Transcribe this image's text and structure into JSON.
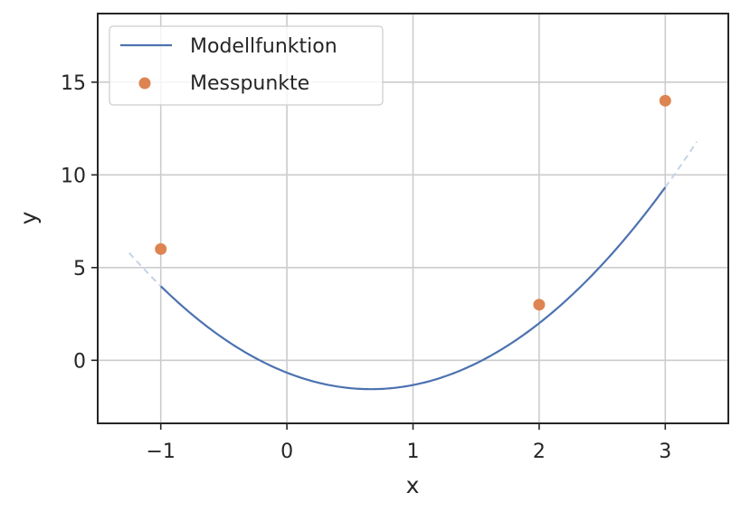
{
  "chart_data": {
    "type": "line",
    "xlabel": "x",
    "ylabel": "y",
    "xlim": [
      -1.5,
      3.5
    ],
    "ylim": [
      -3.4,
      18.7
    ],
    "xticks": [
      -1,
      0,
      1,
      2,
      3
    ],
    "xtick_labels": [
      "−1",
      "0",
      "1",
      "2",
      "3"
    ],
    "yticks": [
      0,
      5,
      10,
      15
    ],
    "ytick_labels": [
      "0",
      "5",
      "10",
      "15"
    ],
    "grid": true,
    "legend_position": "top-left",
    "series": [
      {
        "name": "Modellfunktion",
        "kind": "line",
        "color": "#4c72b0",
        "function": "y = 2x^2 - 2.667x - 0.667",
        "x_range": [
          -1,
          3
        ]
      },
      {
        "name": "Messpunkte",
        "kind": "scatter",
        "color": "#dd8452",
        "x": [
          -1,
          2,
          3
        ],
        "y": [
          6,
          3,
          14
        ]
      }
    ],
    "extrapolation": {
      "style": "dashed",
      "color": "#c5d3e6",
      "segments": [
        {
          "x_range": [
            -1.25,
            -1
          ]
        },
        {
          "x_range": [
            3,
            3.25
          ]
        }
      ]
    }
  }
}
